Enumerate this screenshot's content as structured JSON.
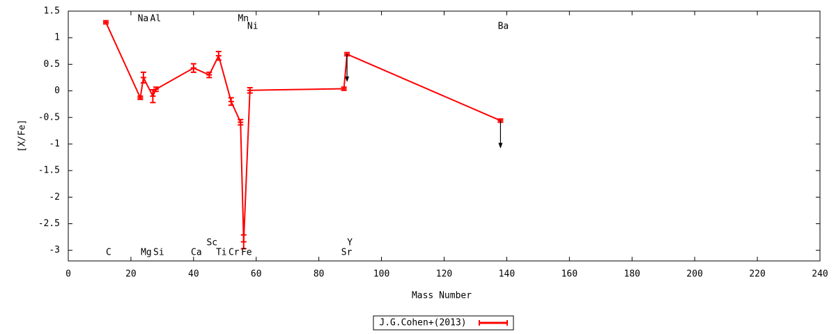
{
  "chart_data": {
    "type": "errorline",
    "x_label": "Mass Number",
    "y_label": "[X/Fe]",
    "xlim": [
      0,
      240
    ],
    "xticks": [
      0,
      20,
      40,
      60,
      80,
      100,
      120,
      140,
      160,
      180,
      200,
      220,
      240
    ],
    "ylim": [
      -3.2,
      1.5
    ],
    "yticks": [
      1.5,
      1,
      0.5,
      0,
      -0.5,
      -1,
      -1.5,
      -2,
      -2.5,
      -3
    ],
    "legend": "bottom",
    "point_labels": [
      "C",
      "Na",
      "Mg",
      "Al",
      "Si",
      "Ca",
      "Sc",
      "Ti",
      "Cr",
      "Mn",
      "Fe",
      "Ni",
      "Sr",
      "Y",
      "Ba"
    ],
    "series": [
      {
        "name": "J.G.Cohen+(2013)",
        "color": "#ff0000",
        "x": [
          12,
          23,
          24,
          27,
          28,
          40,
          45,
          48,
          52,
          55,
          56,
          58,
          88,
          89,
          138
        ],
        "values": [
          1.29,
          -0.13,
          0.25,
          -0.1,
          0.03,
          0.43,
          0.3,
          0.66,
          -0.2,
          -0.59,
          -2.84,
          0.01,
          0.04,
          0.69,
          -0.56
        ],
        "errors": [
          0.03,
          0.03,
          0.1,
          0.12,
          0.04,
          0.08,
          0.05,
          0.08,
          0.07,
          0.05,
          0.13,
          0.05,
          0.03,
          0.03,
          0.03
        ],
        "upper_limits": [
          false,
          false,
          false,
          false,
          false,
          false,
          false,
          false,
          false,
          false,
          false,
          false,
          false,
          true,
          true
        ]
      }
    ]
  }
}
